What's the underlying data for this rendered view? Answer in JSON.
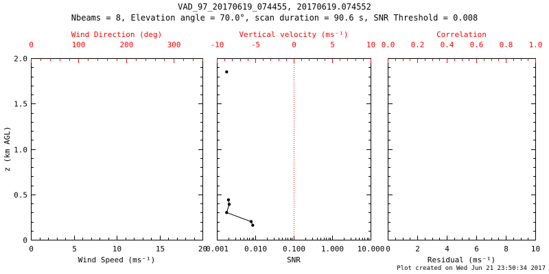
{
  "chart_data": {
    "type": "multi-panel-profile",
    "title": "VAD_97_20170619_074455, 20170619.074552",
    "subtitle": "Nbeams = 8, Elevation angle = 70.0°, scan duration = 90.6 s, SNR Threshold = 0.008",
    "panels": [
      {
        "type": "scatter",
        "panel": "wind-speed-direction",
        "xlabel": "Wind Speed (ms⁻¹)",
        "x2label": "Wind Direction (deg)",
        "ylabel": "z (km AGL)",
        "xlim": [
          0,
          20
        ],
        "xticks": [
          0,
          5,
          10,
          15,
          20
        ],
        "xtick_labels": [
          "0",
          "5",
          "10",
          "15",
          "20"
        ],
        "xminor": 1,
        "x2lim": [
          0,
          360
        ],
        "x2ticks": [
          0,
          100,
          200,
          300
        ],
        "x2tick_labels": [
          "0",
          "100",
          "200",
          "300"
        ],
        "x2minor": 20,
        "ylim": [
          0,
          2
        ],
        "yticks": [
          0,
          0.5,
          1,
          1.5,
          2
        ],
        "ytick_labels": [
          "0",
          "0.5",
          "1.0",
          "1.5",
          "2.0"
        ],
        "yminor": 0.1,
        "series": []
      },
      {
        "type": "line",
        "panel": "snr-vertical-velocity",
        "xlabel": "SNR",
        "x2label": "Vertical velocity (ms⁻¹)",
        "xscale": "log",
        "xlim": [
          0.001,
          10
        ],
        "xticks": [
          0.001,
          0.01,
          0.1,
          1,
          10
        ],
        "xtick_labels": [
          "0.001",
          "0.010",
          "0.100",
          "1.000",
          "10.000"
        ],
        "x2lim": [
          -10,
          10
        ],
        "x2ticks": [
          -10,
          -5,
          0,
          5,
          10
        ],
        "x2tick_labels": [
          "-10",
          "-5",
          "0",
          "5",
          "10"
        ],
        "x2minor": 1,
        "ylim": [
          0,
          2
        ],
        "yticks": [
          0,
          0.5,
          1,
          1.5,
          2
        ],
        "yminor": 0.1,
        "refline_x2": 0,
        "series": [
          {
            "name": "snr-point-upper",
            "connected": false,
            "color": "#000000",
            "points": [
              [
                0.0018,
                1.85
              ]
            ]
          },
          {
            "name": "snr-profile-lower",
            "connected": true,
            "color": "#000000",
            "points": [
              [
                0.002,
                0.44
              ],
              [
                0.0021,
                0.39
              ],
              [
                0.0018,
                0.3
              ],
              [
                0.0078,
                0.2
              ],
              [
                0.0086,
                0.16
              ]
            ]
          }
        ]
      },
      {
        "type": "scatter",
        "panel": "residual-correlation",
        "xlabel": "Residual (ms⁻¹)",
        "x2label": "Correlation",
        "xlim": [
          0,
          10
        ],
        "xticks": [
          0,
          2,
          4,
          6,
          8,
          10
        ],
        "xtick_labels": [
          "0",
          "2",
          "4",
          "6",
          "8",
          "10"
        ],
        "xminor": 0.5,
        "x2lim": [
          0,
          1
        ],
        "x2ticks": [
          0,
          0.2,
          0.4,
          0.6,
          0.8,
          1
        ],
        "x2tick_labels": [
          "0.0",
          "0.2",
          "0.4",
          "0.6",
          "0.8",
          "1.0"
        ],
        "x2minor": 0.05,
        "ylim": [
          0,
          2
        ],
        "yticks": [
          0,
          0.5,
          1,
          1.5,
          2
        ],
        "yminor": 0.1,
        "series": []
      }
    ]
  },
  "footer": {
    "created_text": "Plot created on Wed Jun 21 23:50:34 2017"
  },
  "colors": {
    "axis": "#000000",
    "accent": "#ff0000",
    "background": "#ffffff"
  }
}
